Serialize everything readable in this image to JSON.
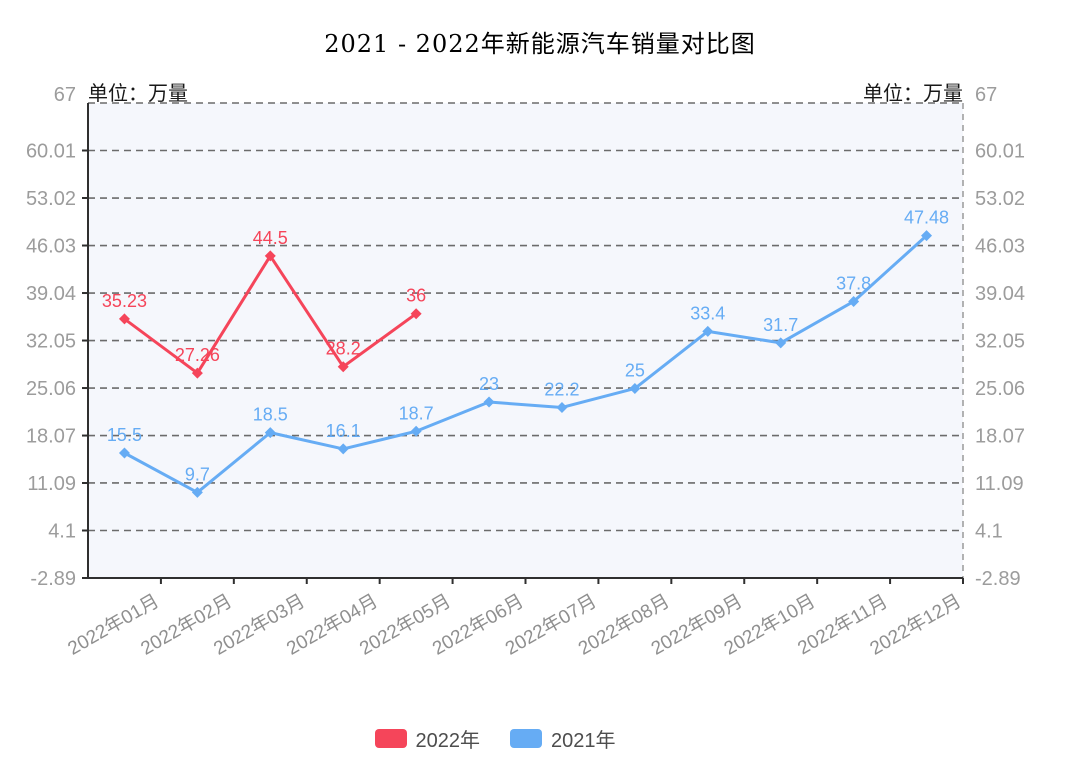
{
  "title": "2021 - 2022年新能源汽车销量对比图",
  "axis_unit_left": "单位：万量",
  "axis_unit_right": "单位：万量",
  "chart_data": {
    "type": "line",
    "title": "2021 - 2022年新能源汽车销量对比图",
    "unit": "万量",
    "categories": [
      "2022年01月",
      "2022年02月",
      "2022年03月",
      "2022年04月",
      "2022年05月",
      "2022年06月",
      "2022年07月",
      "2022年08月",
      "2022年09月",
      "2022年10月",
      "2022年11月",
      "2022年12月"
    ],
    "y_ticks": [
      67,
      60.01,
      53.02,
      46.03,
      39.04,
      32.05,
      25.06,
      18.07,
      11.09,
      4.1,
      -2.89
    ],
    "ylim": [
      -2.89,
      67
    ],
    "grid": true,
    "legend_position": "bottom",
    "x_label_rotation": -30,
    "series": [
      {
        "name": "2022年",
        "color": "#f5455a",
        "marker": "diamond",
        "values": [
          35.23,
          27.26,
          44.5,
          28.2,
          36
        ]
      },
      {
        "name": "2021年",
        "color": "#66acf4",
        "marker": "diamond",
        "values": [
          15.5,
          9.7,
          18.5,
          16.1,
          18.7,
          23,
          22.2,
          25,
          33.4,
          31.7,
          37.8,
          47.48
        ]
      }
    ],
    "style": {
      "plot_background": "#f5f7fc",
      "grid_line": "#6b6b6b",
      "axis_line": "#2f2f2f",
      "right_border": "#9a9a9a",
      "y_label_color": "#9c9c9c",
      "x_label_color": "#8f8f8f",
      "legend_text": "#4d4d4d"
    }
  }
}
